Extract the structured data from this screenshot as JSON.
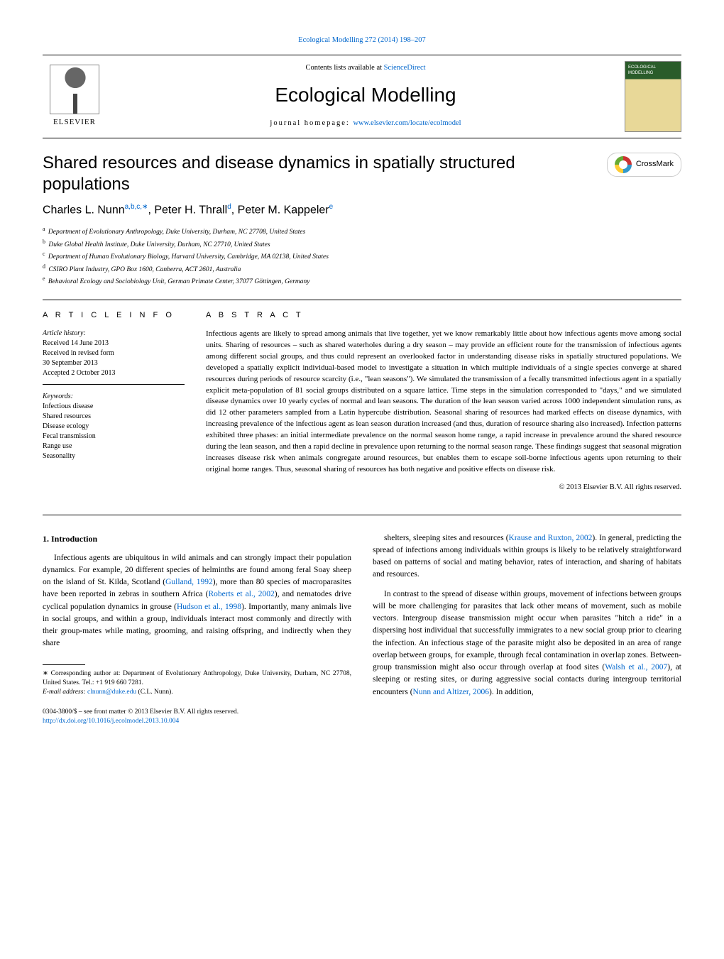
{
  "journal_ref": "Ecological Modelling 272 (2014) 198–207",
  "header": {
    "contents_prefix": "Contents lists available at ",
    "contents_link": "ScienceDirect",
    "journal_title": "Ecological Modelling",
    "homepage_prefix": "journal homepage: ",
    "homepage_link": "www.elsevier.com/locate/ecolmodel",
    "publisher": "ELSEVIER"
  },
  "crossmark_label": "CrossMark",
  "title": "Shared resources and disease dynamics in spatially structured populations",
  "authors_html": "Charles L. Nunn",
  "authors": [
    {
      "name": "Charles L. Nunn",
      "marks": "a,b,c,∗"
    },
    {
      "name": "Peter H. Thrall",
      "marks": "d"
    },
    {
      "name": "Peter M. Kappeler",
      "marks": "e"
    }
  ],
  "affiliations": [
    {
      "mark": "a",
      "text": "Department of Evolutionary Anthropology, Duke University, Durham, NC 27708, United States"
    },
    {
      "mark": "b",
      "text": "Duke Global Health Institute, Duke University, Durham, NC 27710, United States"
    },
    {
      "mark": "c",
      "text": "Department of Human Evolutionary Biology, Harvard University, Cambridge, MA 02138, United States"
    },
    {
      "mark": "d",
      "text": "CSIRO Plant Industry, GPO Box 1600, Canberra, ACT 2601, Australia"
    },
    {
      "mark": "e",
      "text": "Behavioral Ecology and Sociobiology Unit, German Primate Center, 37077 Göttingen, Germany"
    }
  ],
  "article_info": {
    "heading": "A R T I C L E   I N F O",
    "history_title": "Article history:",
    "history": [
      "Received 14 June 2013",
      "Received in revised form",
      "30 September 2013",
      "Accepted 2 October 2013"
    ],
    "keywords_title": "Keywords:",
    "keywords": [
      "Infectious disease",
      "Shared resources",
      "Disease ecology",
      "Fecal transmission",
      "Range use",
      "Seasonality"
    ]
  },
  "abstract": {
    "heading": "A B S T R A C T",
    "text": "Infectious agents are likely to spread among animals that live together, yet we know remarkably little about how infectious agents move among social units. Sharing of resources – such as shared waterholes during a dry season – may provide an efficient route for the transmission of infectious agents among different social groups, and thus could represent an overlooked factor in understanding disease risks in spatially structured populations. We developed a spatially explicit individual-based model to investigate a situation in which multiple individuals of a single species converge at shared resources during periods of resource scarcity (i.e., \"lean seasons\"). We simulated the transmission of a fecally transmitted infectious agent in a spatially explicit meta-population of 81 social groups distributed on a square lattice. Time steps in the simulation corresponded to \"days,\" and we simulated disease dynamics over 10 yearly cycles of normal and lean seasons. The duration of the lean season varied across 1000 independent simulation runs, as did 12 other parameters sampled from a Latin hypercube distribution. Seasonal sharing of resources had marked effects on disease dynamics, with increasing prevalence of the infectious agent as lean season duration increased (and thus, duration of resource sharing also increased). Infection patterns exhibited three phases: an initial intermediate prevalence on the normal season home range, a rapid increase in prevalence around the shared resource during the lean season, and then a rapid decline in prevalence upon returning to the normal season range. These findings suggest that seasonal migration increases disease risk when animals congregate around resources, but enables them to escape soil-borne infectious agents upon returning to their original home ranges. Thus, seasonal sharing of resources has both negative and positive effects on disease risk.",
    "copyright": "© 2013 Elsevier B.V. All rights reserved."
  },
  "body": {
    "section_number": "1.",
    "section_title": "Introduction",
    "left_paragraphs": [
      "Infectious agents are ubiquitous in wild animals and can strongly impact their population dynamics. For example, 20 different species of helminths are found among feral Soay sheep on the island of St. Kilda, Scotland (<span class=\"cite\">Gulland, 1992</span>), more than 80 species of macroparasites have been reported in zebras in southern Africa (<span class=\"cite\">Roberts et al., 2002</span>), and nematodes drive cyclical population dynamics in grouse (<span class=\"cite\">Hudson et al., 1998</span>). Importantly, many animals live in social groups, and within a group, individuals interact most commonly and directly with their group-mates while mating, grooming, and raising offspring, and indirectly when they share"
    ],
    "right_paragraphs": [
      "shelters, sleeping sites and resources (<span class=\"cite\">Krause and Ruxton, 2002</span>). In general, predicting the spread of infections among individuals within groups is likely to be relatively straightforward based on patterns of social and mating behavior, rates of interaction, and sharing of habitats and resources.",
      "In contrast to the spread of disease within groups, movement of infections between groups will be more challenging for parasites that lack other means of movement, such as mobile vectors. Intergroup disease transmission might occur when parasites \"hitch a ride\" in a dispersing host individual that successfully immigrates to a new social group prior to clearing the infection. An infectious stage of the parasite might also be deposited in an area of range overlap between groups, for example, through fecal contamination in overlap zones. Between-group transmission might also occur through overlap at food sites (<span class=\"cite\">Walsh et al., 2007</span>), at sleeping or resting sites, or during aggressive social contacts during intergroup territorial encounters (<span class=\"cite\">Nunn and Altizer, 2006</span>). In addition,"
    ]
  },
  "footnote": {
    "corr": "∗ Corresponding author at: Department of Evolutionary Anthropology, Duke University, Durham, NC 27708, United States. Tel.: +1 919 660 7281.",
    "email_label": "E-mail address: ",
    "email": "clnunn@duke.edu",
    "email_suffix": " (C.L. Nunn)."
  },
  "footer": {
    "issn": "0304-3800/$ – see front matter © 2013 Elsevier B.V. All rights reserved.",
    "doi": "http://dx.doi.org/10.1016/j.ecolmodel.2013.10.004"
  },
  "colors": {
    "link": "#0066cc",
    "text": "#000000",
    "cover_green": "#2a5c2a",
    "cover_tan": "#e8d898"
  }
}
